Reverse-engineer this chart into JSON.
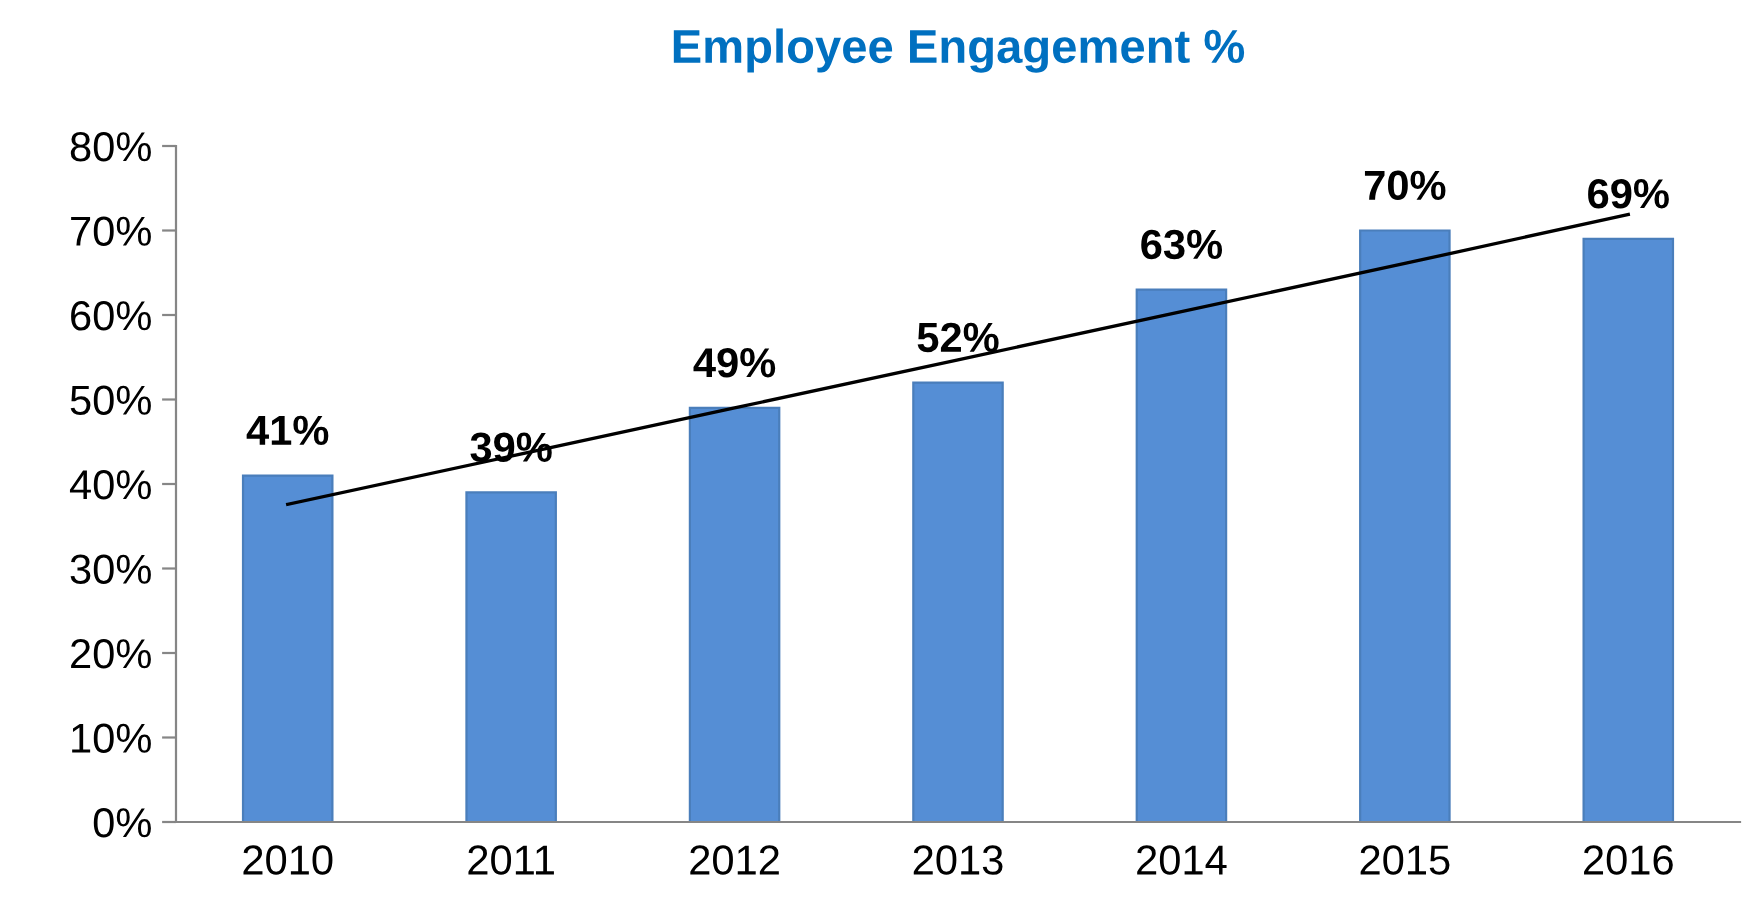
{
  "chart_data": {
    "type": "bar",
    "title": "Employee Engagement %",
    "categories": [
      "2010",
      "2011",
      "2012",
      "2013",
      "2014",
      "2015",
      "2016"
    ],
    "series": [
      {
        "color": "#558ed5",
        "values": [
          41,
          39,
          49,
          52,
          63,
          70,
          69
        ],
        "value_labels": [
          "41%",
          "39%",
          "49%",
          "52%",
          "63%",
          "70%",
          "69%"
        ]
      },
      {
        "type": "line",
        "color": "#000000",
        "values": [
          37.6,
          43.3,
          49.0,
          54.7,
          60.4,
          66.1,
          71.9
        ]
      }
    ],
    "ylim": [
      0,
      80
    ],
    "yticks": [
      {
        "value": 0,
        "label": "0%"
      },
      {
        "value": 10,
        "label": "10%"
      },
      {
        "value": 20,
        "label": "20%"
      },
      {
        "value": 30,
        "label": "30%"
      },
      {
        "value": 40,
        "label": "40%"
      },
      {
        "value": 50,
        "label": "50%"
      },
      {
        "value": 60,
        "label": "60%"
      },
      {
        "value": 70,
        "label": "70%"
      },
      {
        "value": 80,
        "label": "80%"
      }
    ],
    "grid": false,
    "legend": false
  }
}
